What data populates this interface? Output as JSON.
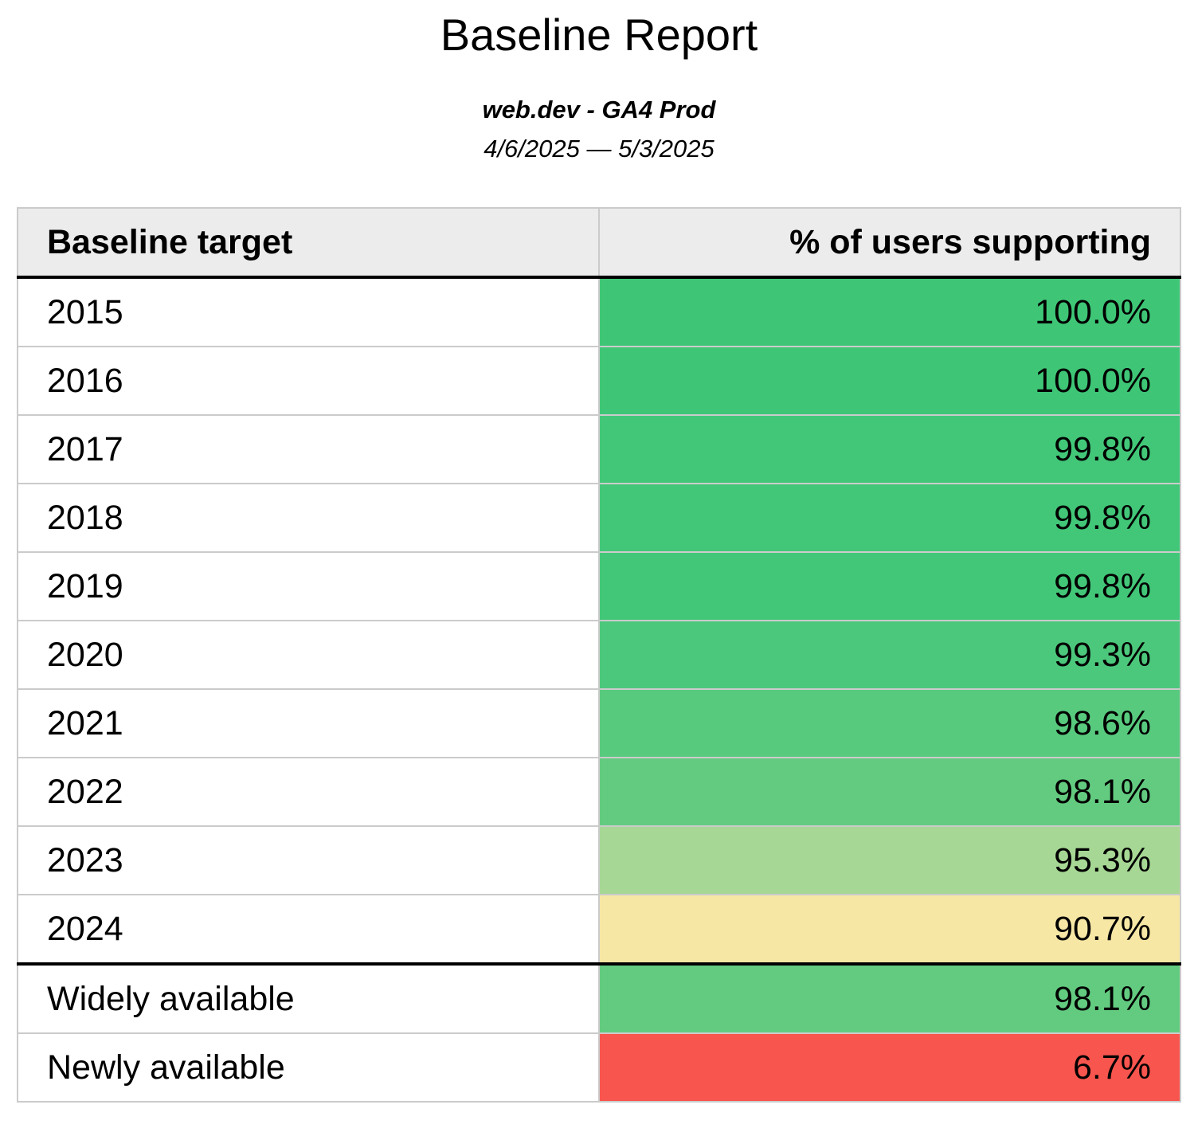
{
  "report": {
    "title": "Baseline Report",
    "subtitle": "web.dev - GA4 Prod",
    "date_range": "4/6/2025 — 5/3/2025"
  },
  "table": {
    "columns": [
      "Baseline target",
      "% of users supporting"
    ],
    "rows": [
      {
        "label": "2015",
        "value": "100.0%",
        "color": "#3ec676",
        "section_end": false
      },
      {
        "label": "2016",
        "value": "100.0%",
        "color": "#3ec676",
        "section_end": false
      },
      {
        "label": "2017",
        "value": "99.8%",
        "color": "#42c778",
        "section_end": false
      },
      {
        "label": "2018",
        "value": "99.8%",
        "color": "#42c778",
        "section_end": false
      },
      {
        "label": "2019",
        "value": "99.8%",
        "color": "#42c778",
        "section_end": false
      },
      {
        "label": "2020",
        "value": "99.3%",
        "color": "#4cc87c",
        "section_end": false
      },
      {
        "label": "2021",
        "value": "98.6%",
        "color": "#58ca7e",
        "section_end": false
      },
      {
        "label": "2022",
        "value": "98.1%",
        "color": "#63cb80",
        "section_end": false
      },
      {
        "label": "2023",
        "value": "95.3%",
        "color": "#a6d794",
        "section_end": false
      },
      {
        "label": "2024",
        "value": "90.7%",
        "color": "#f7e7a5",
        "section_end": true
      },
      {
        "label": "Widely available",
        "value": "98.1%",
        "color": "#63cb80",
        "section_end": false
      },
      {
        "label": "Newly available",
        "value": "6.7%",
        "color": "#f8554e",
        "section_end": false
      }
    ]
  },
  "chart_data": {
    "type": "table",
    "title": "Baseline Report",
    "subtitle": "web.dev - GA4 Prod",
    "date_range": "4/6/2025 — 5/3/2025",
    "columns": [
      "Baseline target",
      "% of users supporting"
    ],
    "categories": [
      "2015",
      "2016",
      "2017",
      "2018",
      "2019",
      "2020",
      "2021",
      "2022",
      "2023",
      "2024",
      "Widely available",
      "Newly available"
    ],
    "values": [
      100.0,
      100.0,
      99.8,
      99.8,
      99.8,
      99.3,
      98.6,
      98.1,
      95.3,
      90.7,
      98.1,
      6.7
    ],
    "value_unit": "percent",
    "color_scale": {
      "high_color": "#3ec676",
      "mid_color": "#f7e7a5",
      "low_color": "#f8554e"
    }
  },
  "colors": {
    "header_bg": "#ececec",
    "border_light": "#cbcbcb",
    "border_heavy": "#000000",
    "page_bg": "#ffffff"
  }
}
